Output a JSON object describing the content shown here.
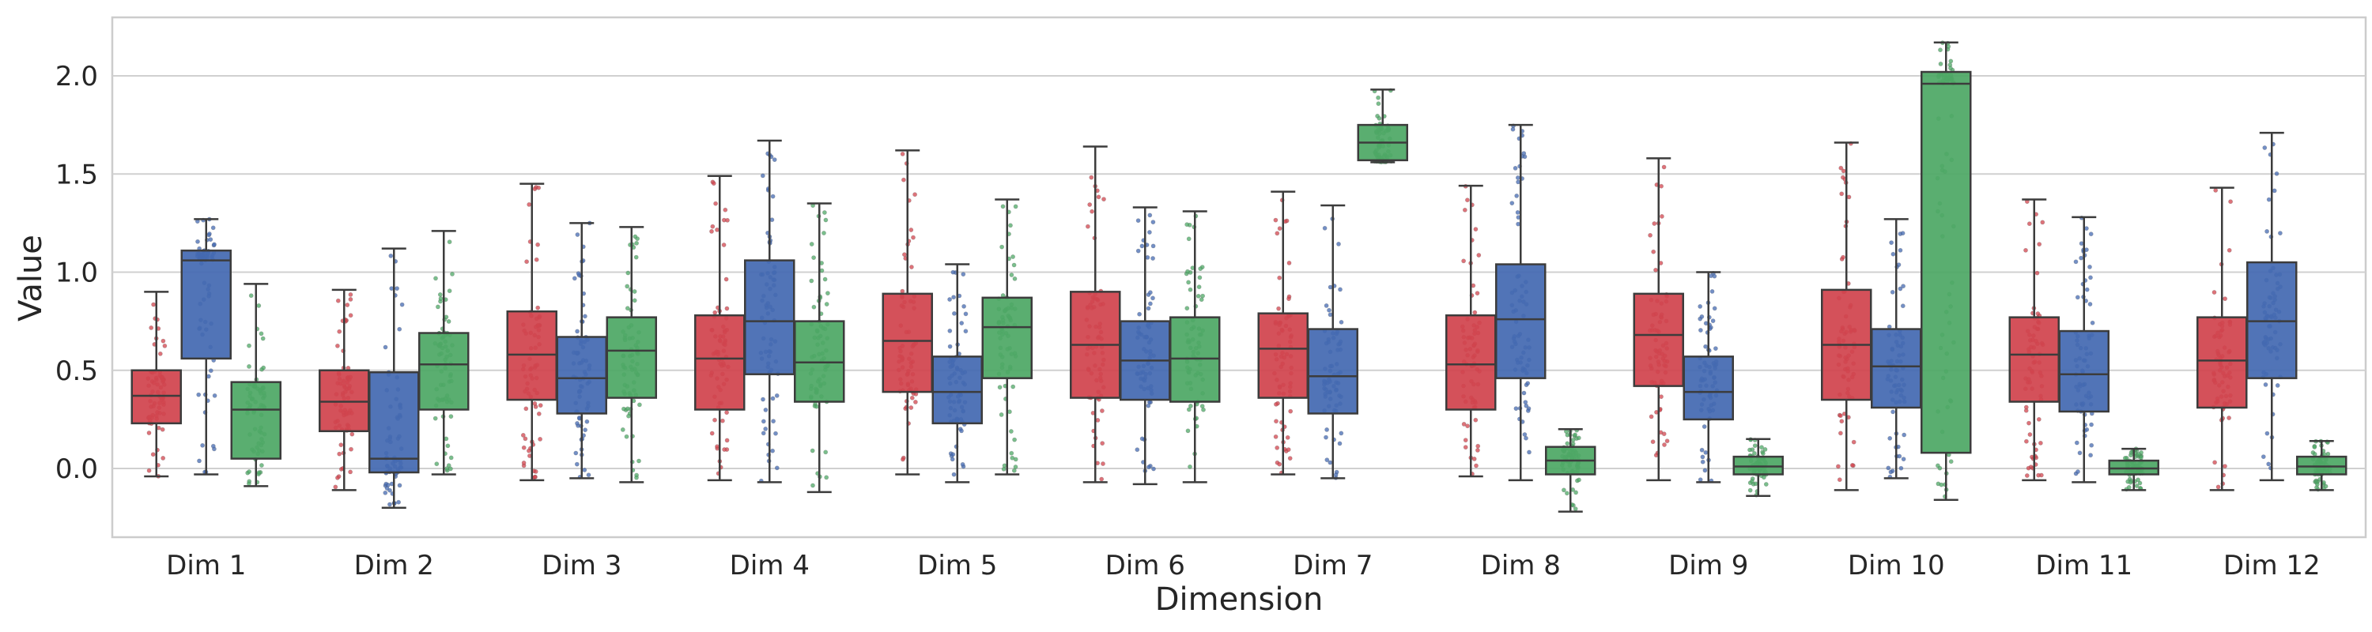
{
  "chart_data": {
    "type": "box",
    "xlabel": "Dimension",
    "ylabel": "Value",
    "ylim": [
      -0.35,
      2.3
    ],
    "yticks": [
      0.0,
      0.5,
      1.0,
      1.5,
      2.0
    ],
    "ytick_labels": [
      "0.0",
      "0.5",
      "1.0",
      "1.5",
      "2.0"
    ],
    "grid": "horizontal",
    "categories": [
      "Dim 1",
      "Dim 2",
      "Dim 3",
      "Dim 4",
      "Dim 5",
      "Dim 6",
      "Dim 7",
      "Dim 8",
      "Dim 9",
      "Dim 10",
      "Dim 11",
      "Dim 12"
    ],
    "series": [
      {
        "color": "#d1444e",
        "boxes": [
          {
            "whislo": -0.04,
            "q1": 0.23,
            "med": 0.37,
            "q3": 0.5,
            "whishi": 0.9
          },
          {
            "whislo": -0.11,
            "q1": 0.19,
            "med": 0.34,
            "q3": 0.5,
            "whishi": 0.91
          },
          {
            "whislo": -0.06,
            "q1": 0.35,
            "med": 0.58,
            "q3": 0.8,
            "whishi": 1.45
          },
          {
            "whislo": -0.06,
            "q1": 0.3,
            "med": 0.56,
            "q3": 0.78,
            "whishi": 1.49
          },
          {
            "whislo": -0.03,
            "q1": 0.39,
            "med": 0.65,
            "q3": 0.89,
            "whishi": 1.62
          },
          {
            "whislo": -0.07,
            "q1": 0.36,
            "med": 0.63,
            "q3": 0.9,
            "whishi": 1.64
          },
          {
            "whislo": -0.03,
            "q1": 0.36,
            "med": 0.61,
            "q3": 0.79,
            "whishi": 1.41
          },
          {
            "whislo": -0.04,
            "q1": 0.3,
            "med": 0.53,
            "q3": 0.78,
            "whishi": 1.44
          },
          {
            "whislo": -0.06,
            "q1": 0.42,
            "med": 0.68,
            "q3": 0.89,
            "whishi": 1.58
          },
          {
            "whislo": -0.11,
            "q1": 0.35,
            "med": 0.63,
            "q3": 0.91,
            "whishi": 1.66
          },
          {
            "whislo": -0.06,
            "q1": 0.34,
            "med": 0.58,
            "q3": 0.77,
            "whishi": 1.37
          },
          {
            "whislo": -0.11,
            "q1": 0.31,
            "med": 0.55,
            "q3": 0.77,
            "whishi": 1.43
          }
        ]
      },
      {
        "color": "#4469b2",
        "boxes": [
          {
            "whislo": -0.03,
            "q1": 0.56,
            "med": 1.06,
            "q3": 1.11,
            "whishi": 1.27
          },
          {
            "whislo": -0.2,
            "q1": -0.02,
            "med": 0.05,
            "q3": 0.49,
            "whishi": 1.12
          },
          {
            "whislo": -0.05,
            "q1": 0.28,
            "med": 0.46,
            "q3": 0.67,
            "whishi": 1.25
          },
          {
            "whislo": -0.07,
            "q1": 0.48,
            "med": 0.75,
            "q3": 1.06,
            "whishi": 1.67
          },
          {
            "whislo": -0.07,
            "q1": 0.23,
            "med": 0.39,
            "q3": 0.57,
            "whishi": 1.04
          },
          {
            "whislo": -0.08,
            "q1": 0.35,
            "med": 0.55,
            "q3": 0.75,
            "whishi": 1.33
          },
          {
            "whislo": -0.05,
            "q1": 0.28,
            "med": 0.47,
            "q3": 0.71,
            "whishi": 1.34
          },
          {
            "whislo": -0.06,
            "q1": 0.46,
            "med": 0.76,
            "q3": 1.04,
            "whishi": 1.75
          },
          {
            "whislo": -0.07,
            "q1": 0.25,
            "med": 0.39,
            "q3": 0.57,
            "whishi": 1.0
          },
          {
            "whislo": -0.05,
            "q1": 0.31,
            "med": 0.52,
            "q3": 0.71,
            "whishi": 1.27
          },
          {
            "whislo": -0.07,
            "q1": 0.29,
            "med": 0.48,
            "q3": 0.7,
            "whishi": 1.28
          },
          {
            "whislo": -0.06,
            "q1": 0.46,
            "med": 0.75,
            "q3": 1.05,
            "whishi": 1.71
          }
        ]
      },
      {
        "color": "#4ea865",
        "boxes": [
          {
            "whislo": -0.09,
            "q1": 0.05,
            "med": 0.3,
            "q3": 0.44,
            "whishi": 0.94
          },
          {
            "whislo": -0.03,
            "q1": 0.3,
            "med": 0.53,
            "q3": 0.69,
            "whishi": 1.21
          },
          {
            "whislo": -0.07,
            "q1": 0.36,
            "med": 0.6,
            "q3": 0.77,
            "whishi": 1.23
          },
          {
            "whislo": -0.12,
            "q1": 0.34,
            "med": 0.54,
            "q3": 0.75,
            "whishi": 1.35
          },
          {
            "whislo": -0.03,
            "q1": 0.46,
            "med": 0.72,
            "q3": 0.87,
            "whishi": 1.37
          },
          {
            "whislo": -0.07,
            "q1": 0.34,
            "med": 0.56,
            "q3": 0.77,
            "whishi": 1.31
          },
          {
            "whislo": 1.56,
            "q1": 1.57,
            "med": 1.66,
            "q3": 1.75,
            "whishi": 1.93
          },
          {
            "whislo": -0.22,
            "q1": -0.03,
            "med": 0.04,
            "q3": 0.11,
            "whishi": 0.2
          },
          {
            "whislo": -0.14,
            "q1": -0.03,
            "med": 0.01,
            "q3": 0.06,
            "whishi": 0.15
          },
          {
            "whislo": -0.16,
            "q1": 0.08,
            "med": 1.96,
            "q3": 2.02,
            "whishi": 2.17
          },
          {
            "whislo": -0.11,
            "q1": -0.03,
            "med": 0.0,
            "q3": 0.04,
            "whishi": 0.1
          },
          {
            "whislo": -0.11,
            "q1": -0.03,
            "med": 0.01,
            "q3": 0.06,
            "whishi": 0.14
          }
        ]
      }
    ]
  }
}
